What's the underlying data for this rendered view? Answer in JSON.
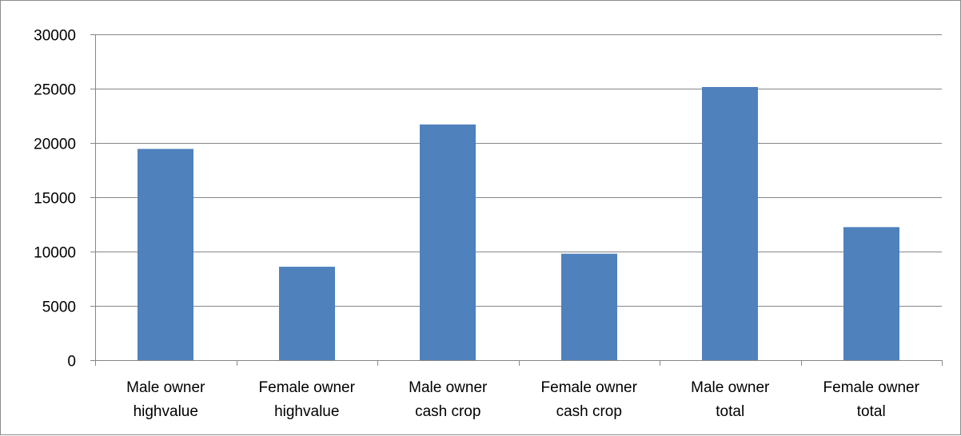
{
  "chart_data": {
    "type": "bar",
    "categories": [
      [
        "Male owner",
        "highvalue"
      ],
      [
        "Female owner",
        "highvalue"
      ],
      [
        "Male owner",
        "cash crop"
      ],
      [
        "Female owner",
        "cash crop"
      ],
      [
        "Male owner",
        "total"
      ],
      [
        "Female owner",
        "total"
      ]
    ],
    "values": [
      19450,
      8600,
      21700,
      9800,
      25150,
      12250
    ],
    "ylim": [
      0,
      30000
    ],
    "yticks": [
      0,
      5000,
      10000,
      15000,
      20000,
      25000,
      30000
    ],
    "grid": true,
    "legend": "none",
    "bar_color": "#4f81bd",
    "grid_color": "#868686",
    "title": "",
    "xlabel": "",
    "ylabel": ""
  }
}
